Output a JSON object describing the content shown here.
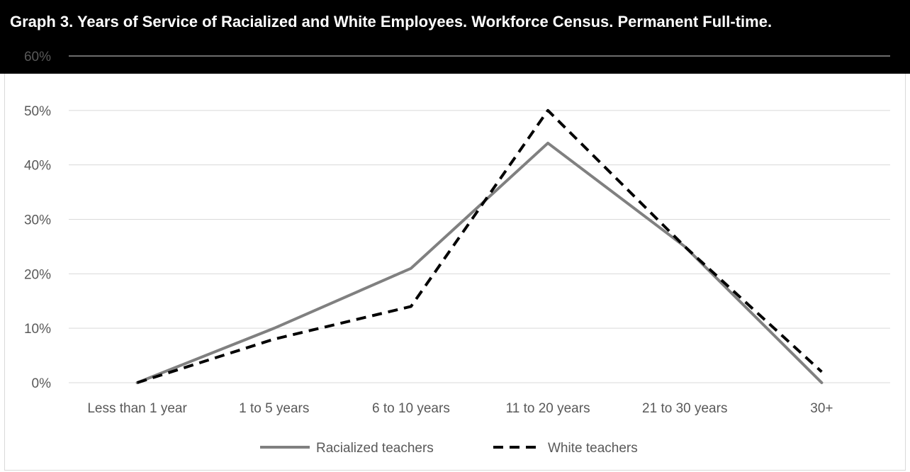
{
  "title": "Graph 3. Years of Service of Racialized and White Employees. Workforce Census. Permanent Full-time.",
  "colors": {
    "title_background": "#000000",
    "title_text": "#ffffff",
    "racialized": "#808080",
    "white": "#000000",
    "gridline": "#d9d9d9",
    "axis_text": "#595959"
  },
  "chart_data": {
    "type": "line",
    "title": "Graph 3. Years of Service of Racialized and White Employees. Workforce Census. Permanent Full-time.",
    "categories": [
      "Less than 1 year",
      "1 to 5 years",
      "6 to 10 years",
      "11 to 20 years",
      "21 to 30 years",
      "30+"
    ],
    "series": [
      {
        "name": "Racialized teachers",
        "values": [
          0.0,
          0.1,
          0.21,
          0.44,
          0.25,
          0.0
        ],
        "style": "solid"
      },
      {
        "name": "White teachers",
        "values": [
          0.0,
          0.08,
          0.14,
          0.5,
          0.25,
          0.02
        ],
        "style": "dashed"
      }
    ],
    "y_ticks": [
      "0%",
      "10%",
      "20%",
      "30%",
      "40%",
      "50%",
      "60%"
    ],
    "ylim": [
      0,
      0.6
    ],
    "grid": true,
    "legend_position": "bottom"
  }
}
